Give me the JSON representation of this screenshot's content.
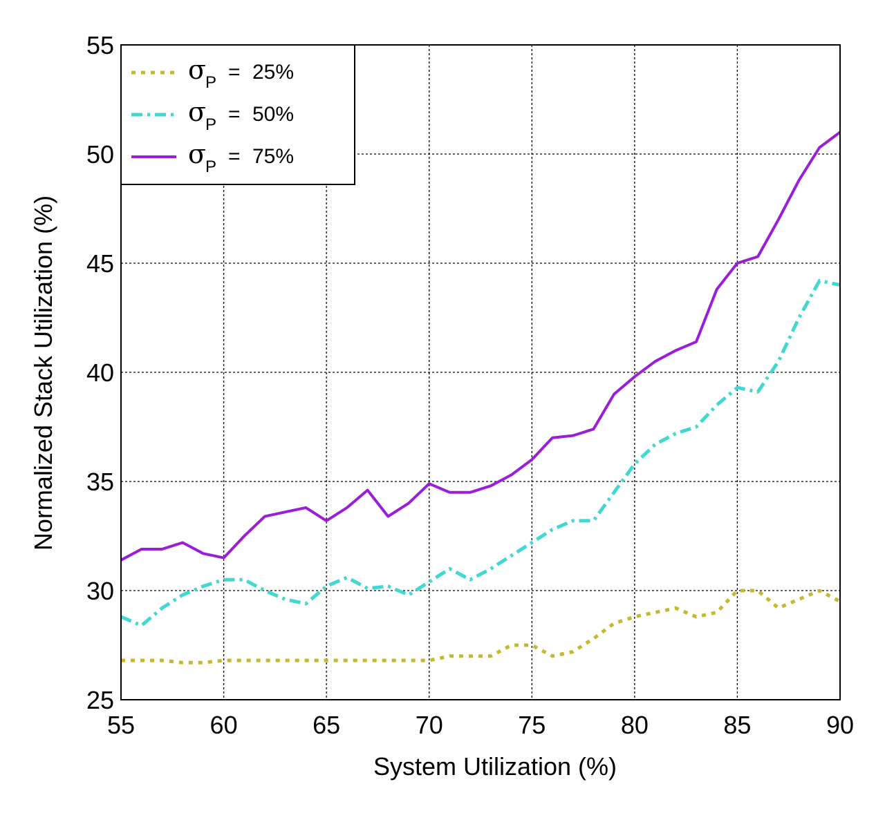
{
  "chart_data": {
    "type": "line",
    "title": "",
    "xlabel": "System Utilization (%)",
    "ylabel": "Normalized Stack Utilization (%)",
    "xlim": [
      55,
      90
    ],
    "ylim": [
      25,
      55
    ],
    "xticks": [
      55,
      60,
      65,
      70,
      75,
      80,
      85,
      90
    ],
    "yticks": [
      25,
      30,
      35,
      40,
      45,
      50,
      55
    ],
    "grid": true,
    "legend_position": "top-left",
    "series": [
      {
        "name": "σP = 25%",
        "symbol": "σ",
        "subscript": "P",
        "value_label": "25%",
        "color": "#c4b830",
        "style": "dotted",
        "x": [
          55,
          56,
          57,
          58,
          59,
          60,
          61,
          62,
          63,
          64,
          65,
          66,
          67,
          68,
          69,
          70,
          71,
          72,
          73,
          74,
          75,
          76,
          77,
          78,
          79,
          80,
          81,
          82,
          83,
          84,
          85,
          86,
          87,
          88,
          89,
          90
        ],
        "y": [
          26.8,
          26.8,
          26.8,
          26.7,
          26.7,
          26.8,
          26.8,
          26.8,
          26.8,
          26.8,
          26.8,
          26.8,
          26.8,
          26.8,
          26.8,
          26.8,
          27.0,
          27.0,
          27.0,
          27.5,
          27.5,
          27.0,
          27.2,
          27.8,
          28.5,
          28.8,
          29.0,
          29.2,
          28.8,
          29.0,
          30.0,
          30.0,
          29.2,
          29.6,
          30.0,
          29.5
        ]
      },
      {
        "name": "σP = 50%",
        "symbol": "σ",
        "subscript": "P",
        "value_label": "50%",
        "color": "#40d8d0",
        "style": "dash-dot",
        "x": [
          55,
          56,
          57,
          58,
          59,
          60,
          61,
          62,
          63,
          64,
          65,
          66,
          67,
          68,
          69,
          70,
          71,
          72,
          73,
          74,
          75,
          76,
          77,
          78,
          79,
          80,
          81,
          82,
          83,
          84,
          85,
          86,
          87,
          88,
          89,
          90
        ],
        "y": [
          28.8,
          28.4,
          29.2,
          29.8,
          30.2,
          30.5,
          30.5,
          30.0,
          29.6,
          29.4,
          30.2,
          30.6,
          30.1,
          30.2,
          29.8,
          30.4,
          31.0,
          30.5,
          31.0,
          31.6,
          32.2,
          32.8,
          33.2,
          33.2,
          34.5,
          35.8,
          36.7,
          37.2,
          37.5,
          38.5,
          39.3,
          39.1,
          40.5,
          42.5,
          44.2,
          44.0
        ]
      },
      {
        "name": "σP = 75%",
        "symbol": "σ",
        "subscript": "P",
        "value_label": "75%",
        "color": "#9a1ed6",
        "style": "solid",
        "x": [
          55,
          56,
          57,
          58,
          59,
          60,
          61,
          62,
          63,
          64,
          65,
          66,
          67,
          68,
          69,
          70,
          71,
          72,
          73,
          74,
          75,
          76,
          77,
          78,
          79,
          80,
          81,
          82,
          83,
          84,
          85,
          86,
          87,
          88,
          89,
          90
        ],
        "y": [
          31.4,
          31.9,
          31.9,
          32.2,
          31.7,
          31.5,
          32.5,
          33.4,
          33.6,
          33.8,
          33.2,
          33.8,
          34.6,
          33.4,
          34.0,
          34.9,
          34.5,
          34.5,
          34.8,
          35.3,
          36.0,
          37.0,
          37.1,
          37.4,
          39.0,
          39.8,
          40.5,
          41.0,
          41.4,
          43.8,
          45.0,
          45.3,
          47.0,
          48.8,
          50.3,
          51.0
        ]
      }
    ]
  }
}
